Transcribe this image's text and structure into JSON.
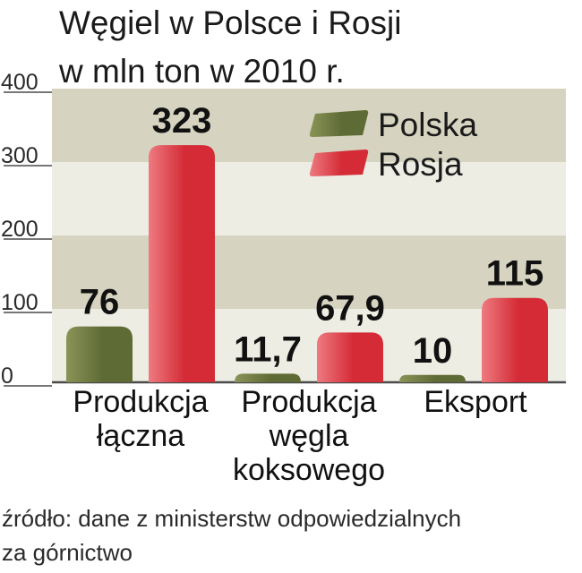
{
  "title": [
    "Węgiel w Polsce i Rosji",
    "w mln ton w 2010 r."
  ],
  "source_lines": [
    "źródło: dane z ministerstw odpowiedzialnych",
    "za górnictwo"
  ],
  "colors": {
    "polska": "#5f6b35",
    "rosja": "#d42b36",
    "band_dark": "#d6d4c0",
    "band_light": "#eeede4",
    "axis": "#4a4a4a"
  },
  "chart_data": {
    "type": "bar",
    "categories": [
      [
        "Produkcja",
        "łączna"
      ],
      [
        "Produkcja",
        "węgla",
        "koksowego"
      ],
      [
        "Eksport"
      ]
    ],
    "series": [
      {
        "name": "Polska",
        "values": [
          76,
          11.7,
          10
        ],
        "labels": [
          "76",
          "11,7",
          "10"
        ]
      },
      {
        "name": "Rosja",
        "values": [
          323,
          67.9,
          115
        ],
        "labels": [
          "323",
          "67,9",
          "115"
        ]
      }
    ],
    "yticks": [
      "0",
      "100",
      "200",
      "300",
      "400"
    ],
    "ylim": [
      0,
      400
    ],
    "grid": false,
    "legend_position": "top-right"
  }
}
